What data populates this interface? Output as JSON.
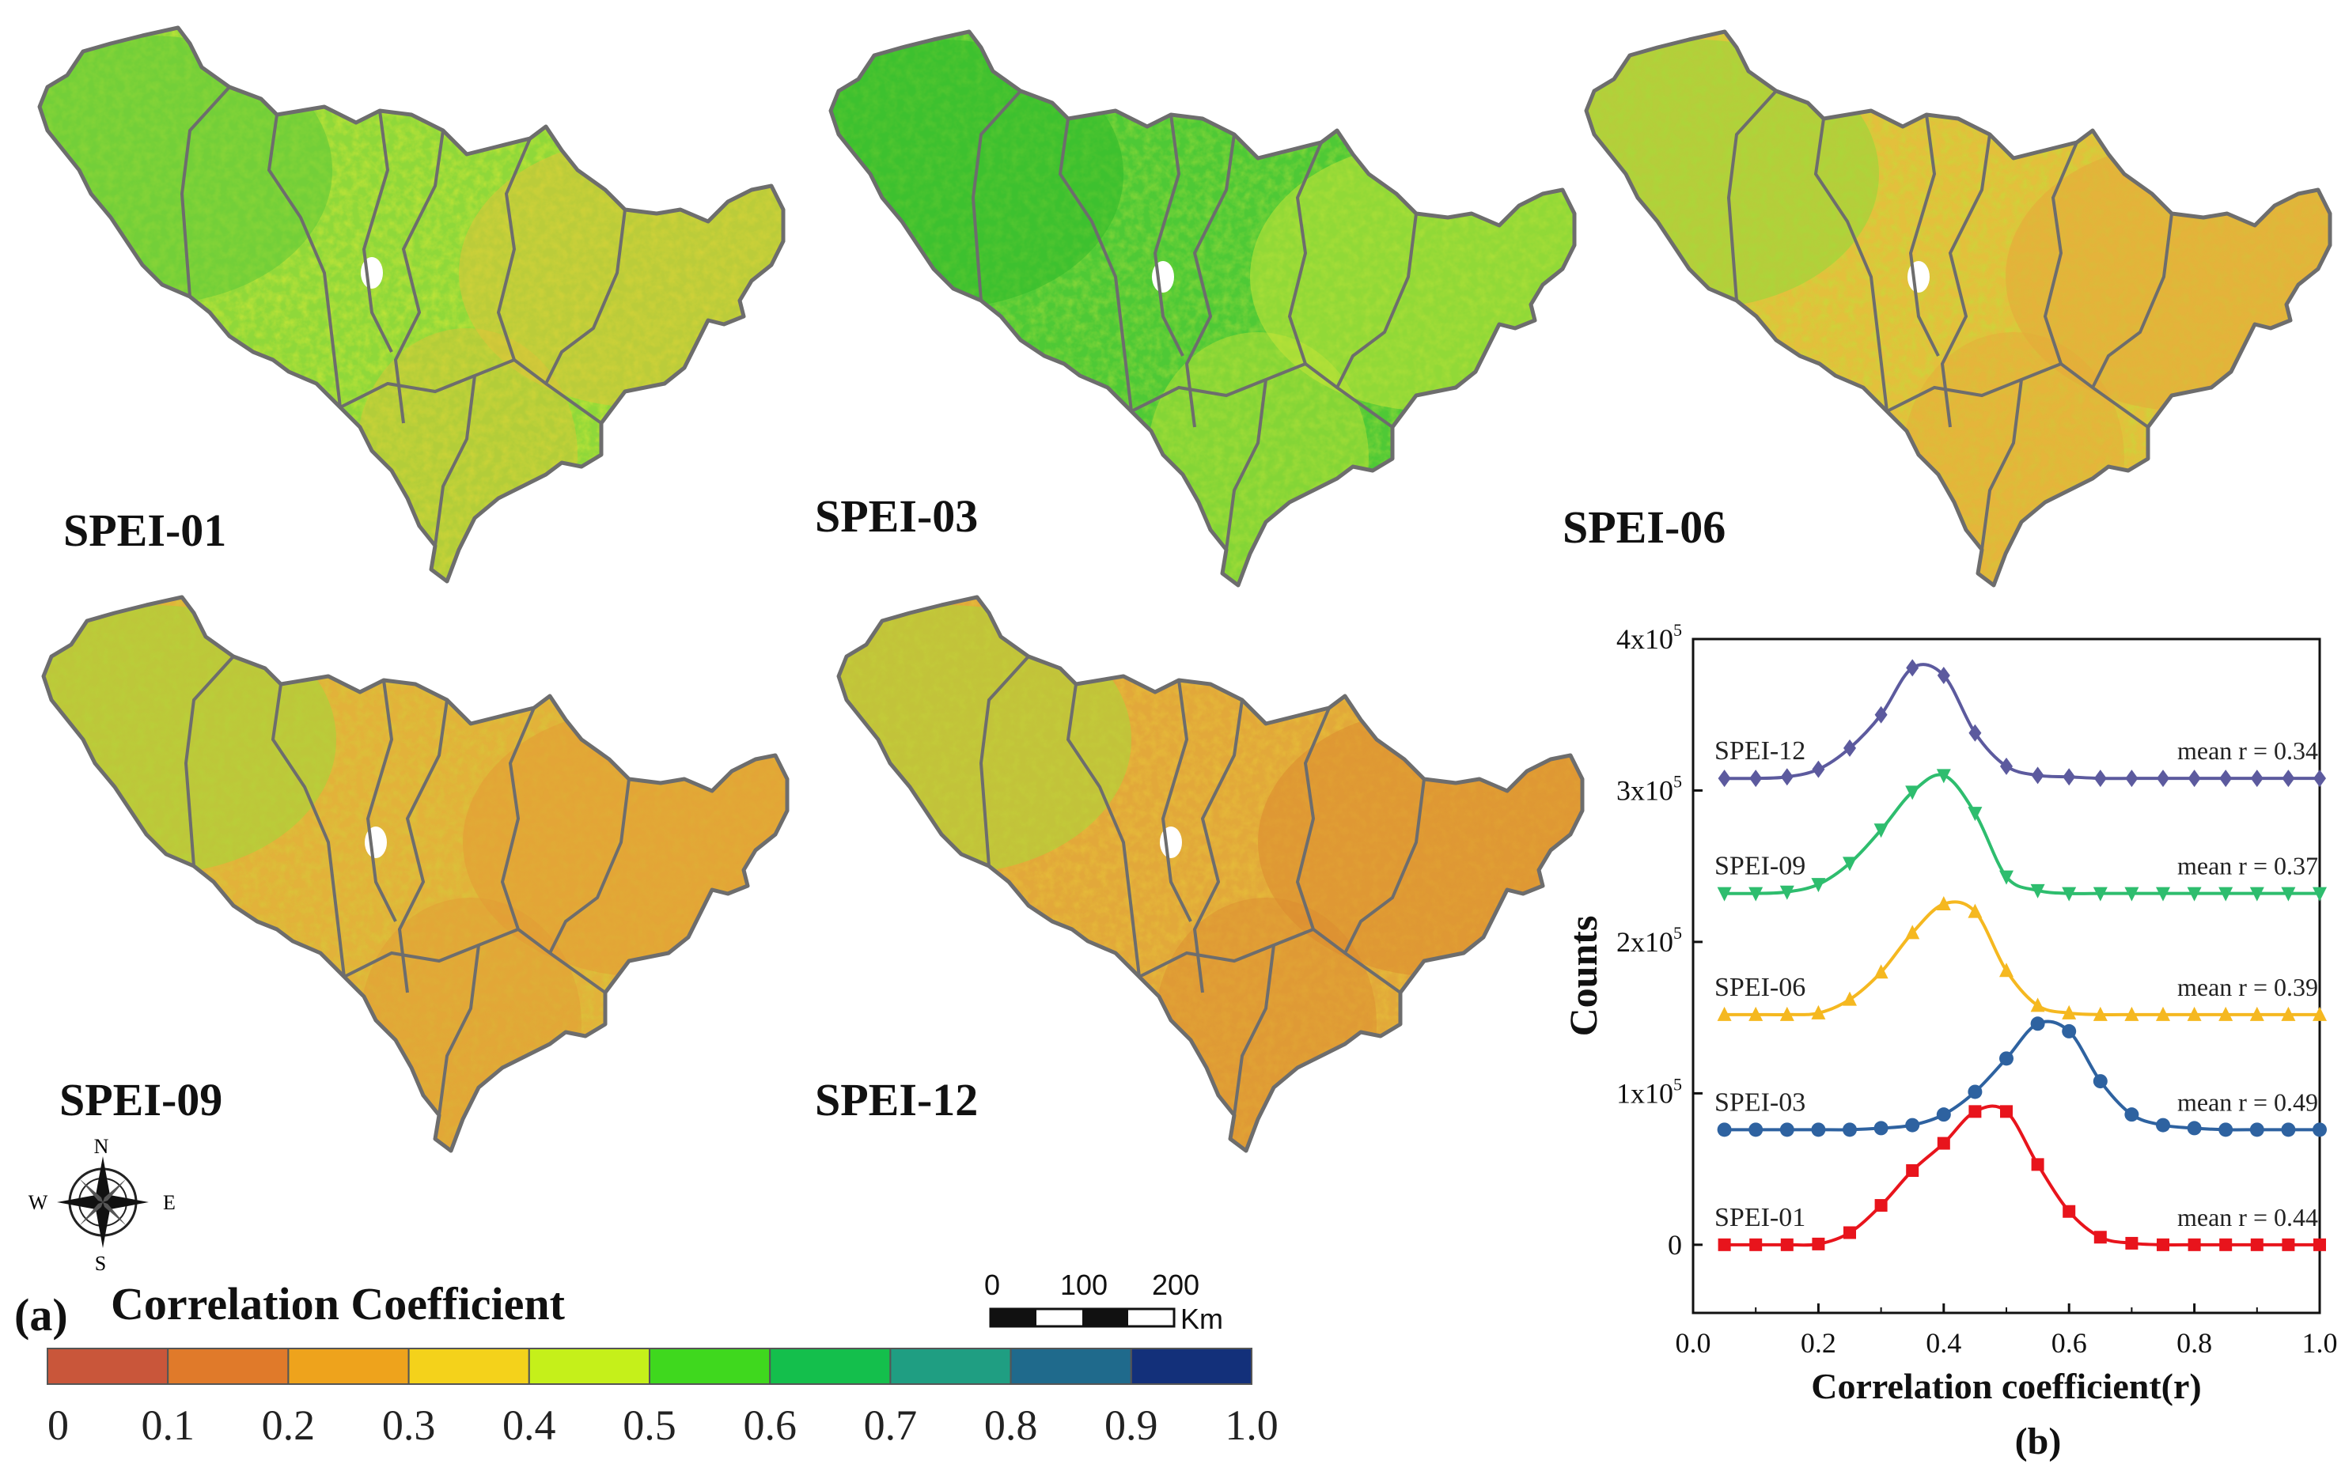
{
  "figure": {
    "panel_a_label": "(a)",
    "panel_b_label": "(b)",
    "legend_title": "Correlation Coefficient",
    "map_labels": [
      "SPEI-01",
      "SPEI-03",
      "SPEI-06",
      "SPEI-09",
      "SPEI-12"
    ],
    "compass": {
      "n": "N",
      "s": "S",
      "e": "E",
      "w": "W"
    },
    "scale_bar": {
      "ticks": [
        "0",
        "100",
        "200"
      ],
      "unit": "Km"
    },
    "colorbar": {
      "ticks": [
        "0",
        "0.1",
        "0.2",
        "0.3",
        "0.4",
        "0.5",
        "0.6",
        "0.7",
        "0.8",
        "0.9",
        "1.0"
      ],
      "colors": [
        "#c9563a",
        "#e07a2a",
        "#eea31c",
        "#f4d21b",
        "#c5f01a",
        "#3fd81e",
        "#14bf4c",
        "#1f9e82",
        "#1f6a8c",
        "#13307a"
      ]
    },
    "map_palettes": [
      [
        "#8fd83a",
        "#c8e538",
        "#e0c23a",
        "#5cc938"
      ],
      [
        "#4ec936",
        "#8fd83a",
        "#c8e538",
        "#2fb92a"
      ],
      [
        "#e3c03c",
        "#c8d83a",
        "#e6a83a",
        "#8fd83a"
      ],
      [
        "#e2b23a",
        "#d9c63a",
        "#e39a35",
        "#9fd83a"
      ],
      [
        "#e2a83a",
        "#e6bf3a",
        "#dc8a30",
        "#a8d83a"
      ]
    ]
  },
  "chart_data": {
    "type": "line",
    "title": "",
    "xlabel": "Correlation coefficient(r)",
    "ylabel": "Counts",
    "xlim": [
      0.0,
      1.0
    ],
    "ylim": [
      -45000,
      400000
    ],
    "xticks": [
      "0.0",
      "0.2",
      "0.4",
      "0.6",
      "0.8",
      "1.0"
    ],
    "xtick_values": [
      0,
      0.2,
      0.4,
      0.6,
      0.8,
      1.0
    ],
    "yticks": [
      {
        "value": 0,
        "base": "0",
        "exp": ""
      },
      {
        "value": 100000,
        "base": "1x10",
        "exp": "5"
      },
      {
        "value": 200000,
        "base": "2x10",
        "exp": "5"
      },
      {
        "value": 300000,
        "base": "3x10",
        "exp": "5"
      },
      {
        "value": 400000,
        "base": "4x10",
        "exp": "5"
      }
    ],
    "x": [
      0.05,
      0.1,
      0.15,
      0.2,
      0.25,
      0.3,
      0.35,
      0.4,
      0.45,
      0.5,
      0.55,
      0.6,
      0.65,
      0.7,
      0.75,
      0.8,
      0.85,
      0.9,
      0.95,
      1.0
    ],
    "series": [
      {
        "name": "SPEI-01",
        "mean_label": "mean r = 0.44",
        "color": "#e8141c",
        "marker": "square",
        "values": [
          0,
          0,
          0,
          500,
          8000,
          26000,
          49000,
          67000,
          88000,
          88000,
          53000,
          22000,
          5000,
          1000,
          0,
          0,
          0,
          0,
          0,
          0
        ]
      },
      {
        "name": "SPEI-03",
        "mean_label": "mean r = 0.49",
        "color": "#2e62a0",
        "marker": "circle",
        "values": [
          76000,
          76000,
          76000,
          76000,
          76000,
          77000,
          79000,
          86000,
          101000,
          123000,
          146000,
          141000,
          108000,
          86000,
          79000,
          77000,
          76000,
          76000,
          76000,
          76000
        ]
      },
      {
        "name": "SPEI-06",
        "mean_label": "mean r = 0.39",
        "color": "#f5b820",
        "marker": "triangle-up",
        "values": [
          152000,
          152000,
          152000,
          153000,
          162000,
          180000,
          206000,
          225000,
          220000,
          181000,
          158000,
          153000,
          152000,
          152000,
          152000,
          152000,
          152000,
          152000,
          152000,
          152000
        ]
      },
      {
        "name": "SPEI-09",
        "mean_label": "mean r = 0.37",
        "color": "#2ebd6e",
        "marker": "triangle-down",
        "values": [
          232000,
          232000,
          233000,
          238000,
          252000,
          274000,
          299000,
          310000,
          285000,
          243000,
          234000,
          232000,
          232000,
          232000,
          232000,
          232000,
          232000,
          232000,
          232000,
          232000
        ]
      },
      {
        "name": "SPEI-12",
        "mean_label": "mean r = 0.34",
        "color": "#5c5a9e",
        "marker": "diamond",
        "values": [
          308000,
          308000,
          309000,
          314000,
          328000,
          350000,
          381000,
          376000,
          338000,
          316000,
          310000,
          309000,
          308000,
          308000,
          308000,
          308000,
          308000,
          308000,
          308000,
          308000
        ]
      }
    ]
  }
}
